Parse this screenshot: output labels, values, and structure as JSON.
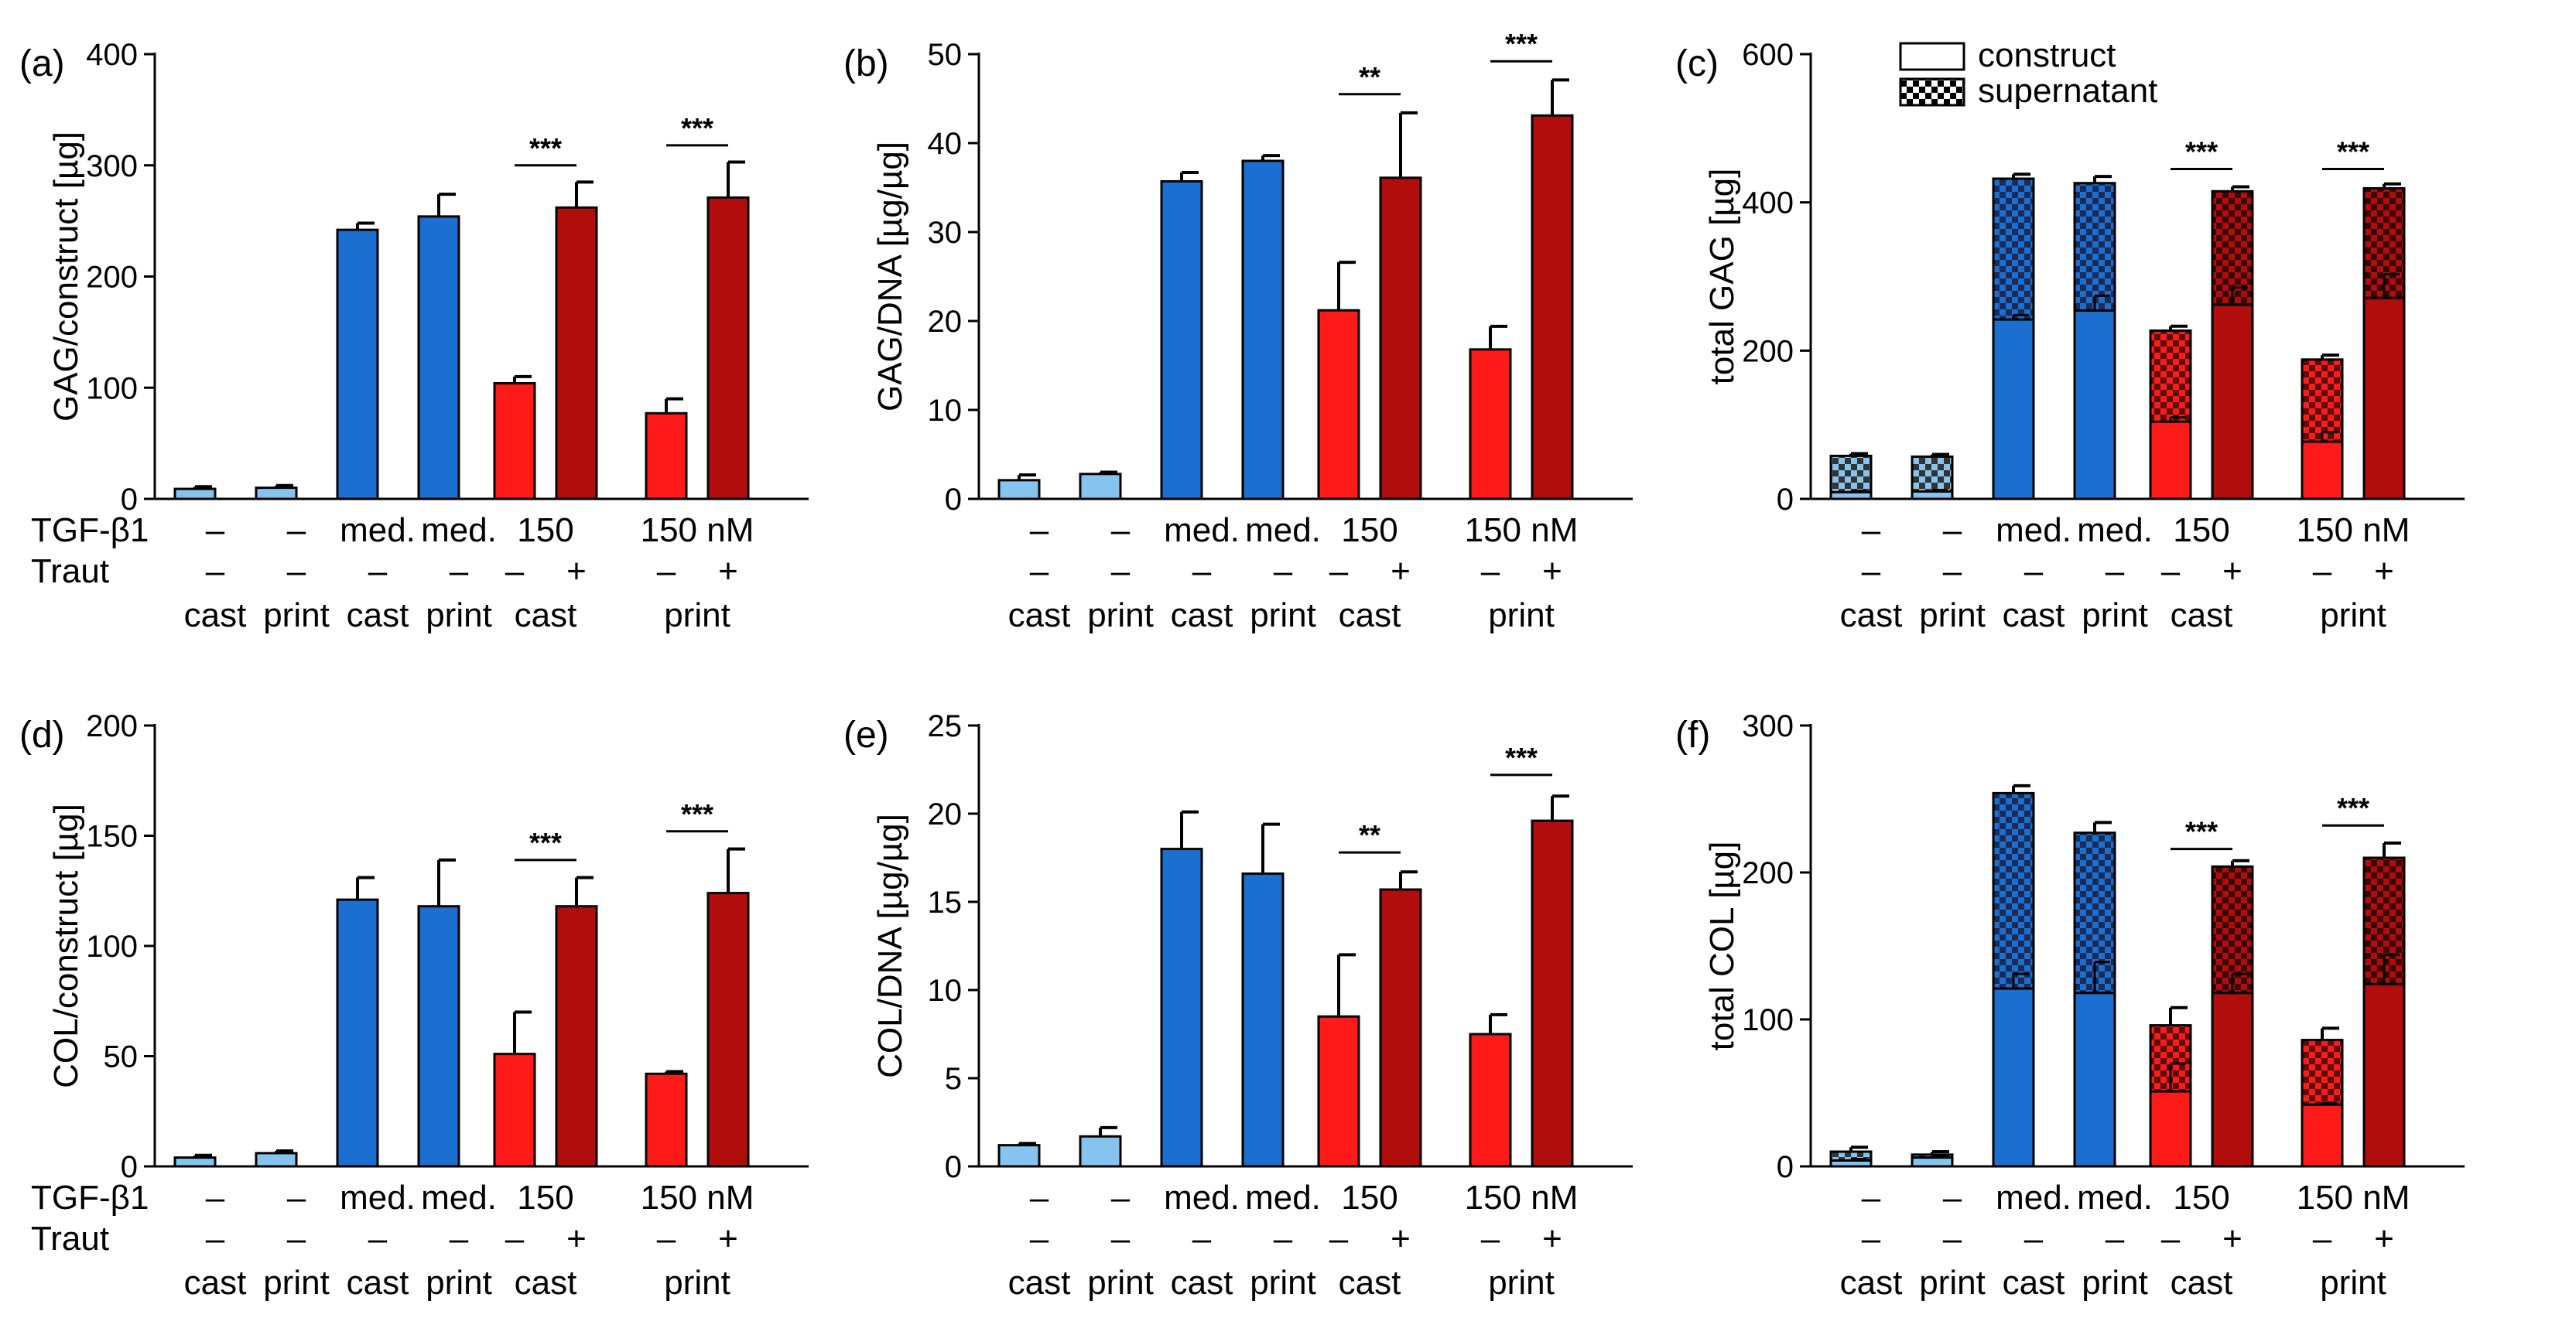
{
  "colors": {
    "light_blue": "#85c4ef",
    "blue": "#1a6fd0",
    "red": "#ff1a1a",
    "dark_red": "#b10d0d",
    "axis": "#000000"
  },
  "condition_labels": {
    "row1_name": "TGF-β1",
    "row2_name": "Traut",
    "groups": [
      {
        "tgf": "–",
        "traut": "–",
        "form": "cast"
      },
      {
        "tgf": "–",
        "traut": "–",
        "form": "print"
      },
      {
        "tgf": "med.",
        "traut": "–",
        "form": "cast"
      },
      {
        "tgf": "med.",
        "traut": "–",
        "form": "print"
      },
      {
        "tgf": "150",
        "traut_pair": [
          "–",
          "+"
        ],
        "form": "cast"
      },
      {
        "tgf": "150 nM",
        "traut_pair": [
          "–",
          "+"
        ],
        "form": "print"
      }
    ]
  },
  "legend": {
    "construct": "construct",
    "supernatant": "supernatant"
  },
  "chart_data": [
    {
      "panel": "(a)",
      "type": "bar",
      "ylabel": "GAG/construct [µg]",
      "ylim": [
        0,
        400
      ],
      "yticks": [
        "0",
        "100",
        "200",
        "300",
        "400"
      ],
      "show_condition_names": true,
      "values": [
        9,
        10,
        242,
        254,
        104,
        262,
        77,
        271
      ],
      "errors": [
        2,
        2,
        6,
        20,
        6,
        23,
        13,
        32
      ],
      "significance": [
        {
          "pair": [
            4,
            5
          ],
          "label": "***",
          "y": 300
        },
        {
          "pair": [
            6,
            7
          ],
          "label": "***",
          "y": 318
        }
      ]
    },
    {
      "panel": "(b)",
      "type": "bar",
      "ylabel": "GAG/DNA [µg/µg]",
      "ylim": [
        0,
        50
      ],
      "yticks": [
        "0",
        "10",
        "20",
        "30",
        "40",
        "50"
      ],
      "show_condition_names": false,
      "values": [
        2.1,
        2.8,
        35.7,
        38.0,
        21.2,
        36.1,
        16.8,
        43.1
      ],
      "errors": [
        0.6,
        0.2,
        1.0,
        0.6,
        5.4,
        7.3,
        2.6,
        4.0
      ],
      "significance": [
        {
          "pair": [
            4,
            5
          ],
          "label": "**",
          "y": 45.5
        },
        {
          "pair": [
            6,
            7
          ],
          "label": "***",
          "y": 49.2
        }
      ]
    },
    {
      "panel": "(c)",
      "type": "stacked_bar",
      "ylabel": "total GAG [µg]",
      "ylim": [
        0,
        600
      ],
      "yticks": [
        "0",
        "200",
        "400",
        "600"
      ],
      "show_condition_names": false,
      "construct": [
        9,
        10,
        242,
        254,
        104,
        262,
        77,
        271
      ],
      "construct_errors": [
        2,
        2,
        6,
        20,
        6,
        23,
        13,
        32
      ],
      "supernatant": [
        49,
        47,
        190,
        172,
        123,
        153,
        111,
        148
      ],
      "total_errors": [
        3,
        3,
        6,
        9,
        6,
        6,
        6,
        6
      ],
      "significance": [
        {
          "pair": [
            4,
            5
          ],
          "label": "***",
          "y": 445
        },
        {
          "pair": [
            6,
            7
          ],
          "label": "***",
          "y": 445
        }
      ]
    },
    {
      "panel": "(d)",
      "type": "bar",
      "ylabel": "COL/construct [µg]",
      "ylim": [
        0,
        200
      ],
      "yticks": [
        "0",
        "50",
        "100",
        "150",
        "200"
      ],
      "show_condition_names": true,
      "values": [
        4,
        6,
        121,
        118,
        51,
        118,
        42,
        124
      ],
      "errors": [
        1,
        1,
        10,
        21,
        19,
        13,
        1,
        20
      ],
      "significance": [
        {
          "pair": [
            4,
            5
          ],
          "label": "***",
          "y": 139
        },
        {
          "pair": [
            6,
            7
          ],
          "label": "***",
          "y": 152
        }
      ]
    },
    {
      "panel": "(e)",
      "type": "bar",
      "ylabel": "COL/DNA [µg/µg]",
      "ylim": [
        0,
        25
      ],
      "yticks": [
        "0",
        "5",
        "10",
        "15",
        "20",
        "25"
      ],
      "show_condition_names": false,
      "values": [
        1.2,
        1.7,
        18.0,
        16.6,
        8.5,
        15.7,
        7.5,
        19.6
      ],
      "errors": [
        0.1,
        0.5,
        2.1,
        2.8,
        3.5,
        1.0,
        1.1,
        1.4
      ],
      "significance": [
        {
          "pair": [
            4,
            5
          ],
          "label": "**",
          "y": 17.8
        },
        {
          "pair": [
            6,
            7
          ],
          "label": "***",
          "y": 22.2
        }
      ]
    },
    {
      "panel": "(f)",
      "type": "stacked_bar",
      "ylabel": "total COL [µg]",
      "ylim": [
        0,
        300
      ],
      "yticks": [
        "0",
        "100",
        "200",
        "300"
      ],
      "show_condition_names": false,
      "construct": [
        4,
        6,
        121,
        118,
        51,
        118,
        42,
        124
      ],
      "construct_errors": [
        1,
        1,
        10,
        21,
        19,
        13,
        1,
        20
      ],
      "supernatant": [
        6,
        2,
        133,
        109,
        45,
        86,
        44,
        86
      ],
      "total_errors": [
        3,
        2,
        5,
        7,
        12,
        4,
        8,
        10
      ],
      "significance": [
        {
          "pair": [
            4,
            5
          ],
          "label": "***",
          "y": 216
        },
        {
          "pair": [
            6,
            7
          ],
          "label": "***",
          "y": 232
        }
      ]
    }
  ]
}
